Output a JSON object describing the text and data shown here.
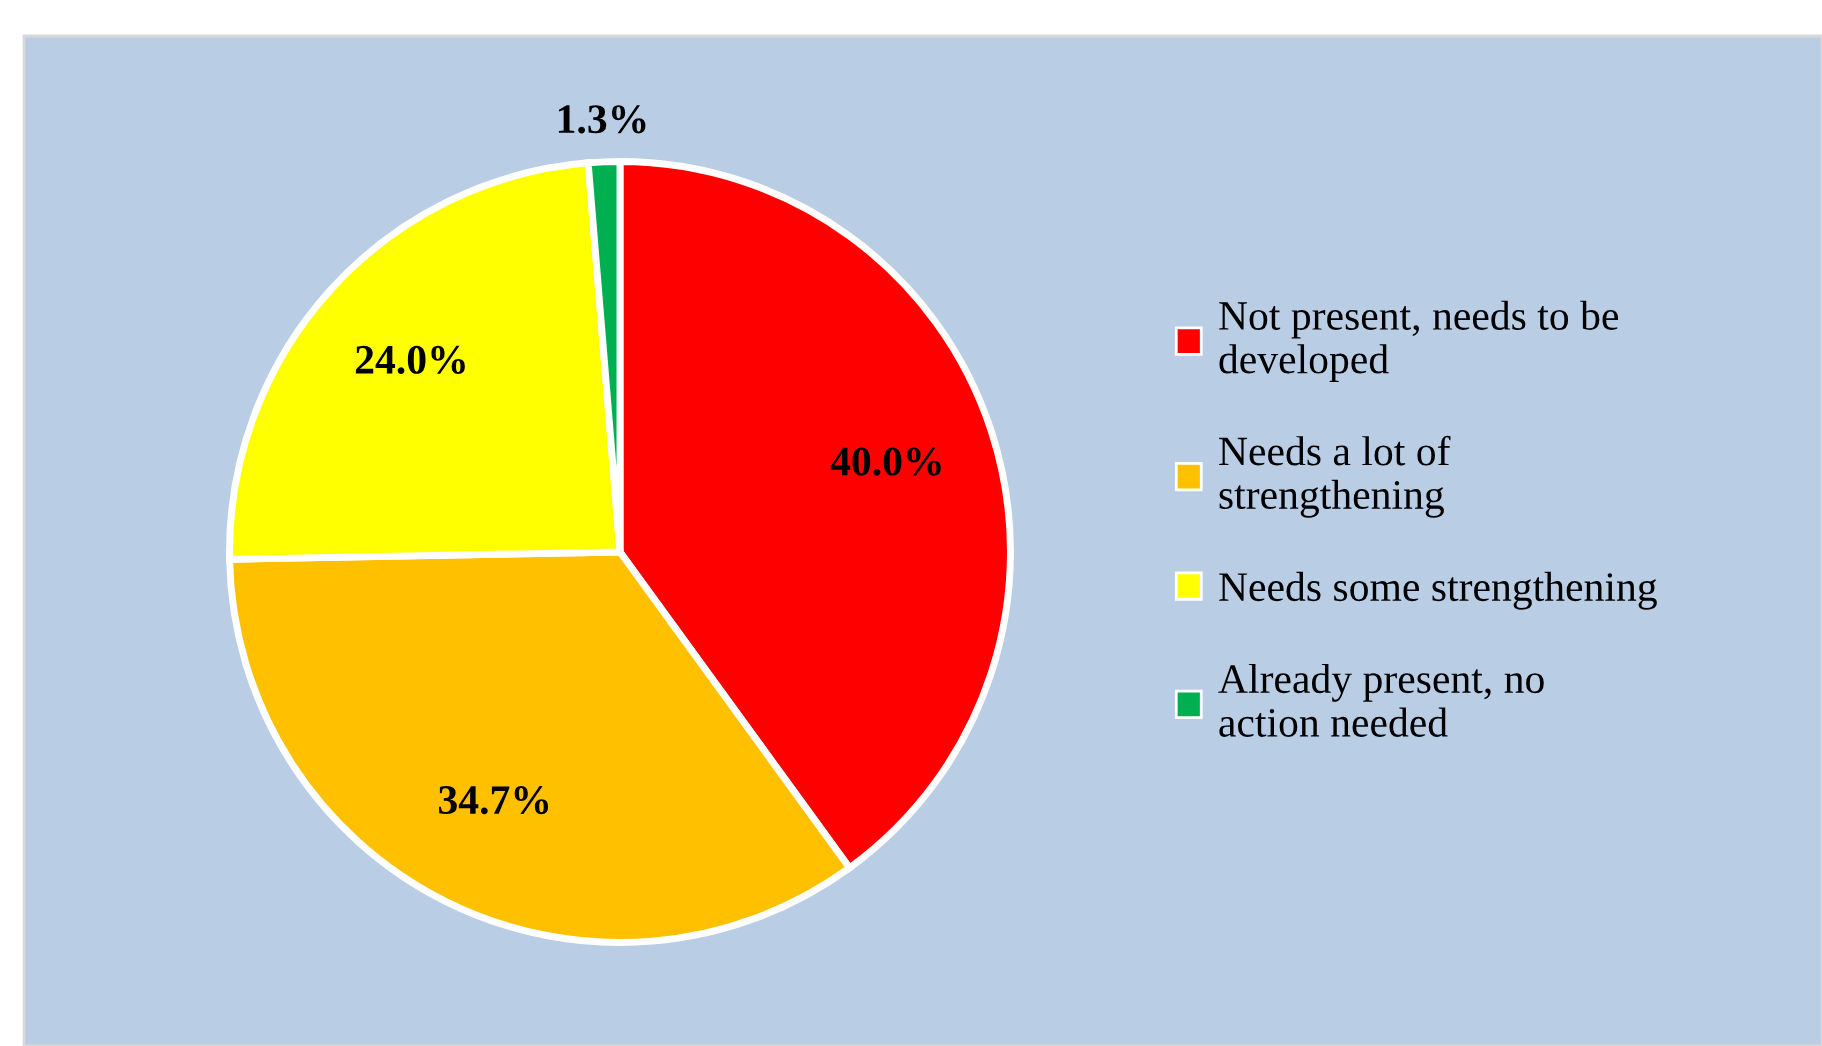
{
  "chart_data": {
    "type": "pie",
    "categories": [
      "Not present, needs to be developed",
      "Needs a lot of strengthening",
      "Needs some strengthening",
      "Already present, no action needed"
    ],
    "values": [
      40.0,
      34.7,
      24.0,
      1.3
    ],
    "colors": [
      "#ff0000",
      "#ffc000",
      "#ffff00",
      "#00b050"
    ],
    "value_labels": [
      "40.0%",
      "34.7%",
      "24.0%",
      "1.3%"
    ],
    "legend": "right"
  }
}
